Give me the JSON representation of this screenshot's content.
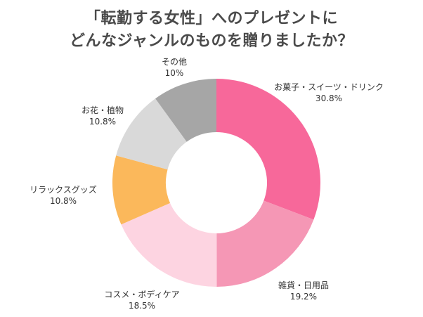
{
  "chart_data": {
    "type": "pie",
    "donut": true,
    "title_lines": [
      "「転勤する女性」へのプレゼントに",
      "どんなジャンルのものを贈りましたか？"
    ],
    "categories": [
      "お菓子・スイーツ・ドリンク",
      "雑貨・日用品",
      "コスメ・ボディケア",
      "リラックスグッズ",
      "お花・植物",
      "その他"
    ],
    "values": [
      30.8,
      19.2,
      18.5,
      10.8,
      10.8,
      10
    ],
    "value_labels": [
      "30.8%",
      "19.2%",
      "18.5%",
      "10.8%",
      "10.8%",
      "10%"
    ],
    "colors": [
      "#f7689a",
      "#f597b5",
      "#fdd4e1",
      "#fbb85b",
      "#d9d9d9",
      "#a6a6a6"
    ],
    "start": "top",
    "direction": "clockwise",
    "legend": "none"
  }
}
